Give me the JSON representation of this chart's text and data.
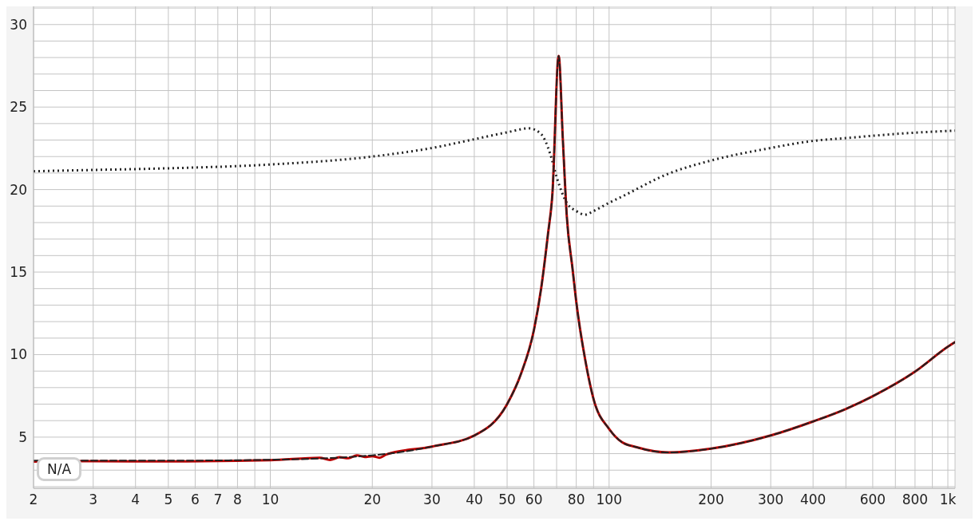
{
  "chart_data": {
    "type": "line",
    "annotations": [
      "N/A"
    ],
    "log": "x",
    "grid": true,
    "legend": false,
    "marker": "none",
    "xlim": [
      2,
      1050
    ],
    "xticks": [
      2,
      3,
      4,
      5,
      6,
      7,
      8,
      {
        "value": 9,
        "label": null
      },
      10,
      20,
      30,
      40,
      50,
      60,
      {
        "value": 70,
        "label": null
      },
      80,
      {
        "value": 90,
        "label": null
      },
      100,
      200,
      300,
      400,
      {
        "value": 500,
        "label": null
      },
      600,
      {
        "value": 700,
        "label": null
      },
      800,
      {
        "value": 900,
        "label": null
      },
      {
        "value": 1000,
        "label": "1k"
      }
    ],
    "ylim": [
      1.9,
      31.1
    ],
    "yticks": [
      {
        "value": 2,
        "label": null
      },
      {
        "value": 3,
        "label": null
      },
      {
        "value": 4,
        "label": null
      },
      5,
      {
        "value": 6,
        "label": null
      },
      {
        "value": 7,
        "label": null
      },
      {
        "value": 8,
        "label": null
      },
      {
        "value": 9,
        "label": null
      },
      10,
      {
        "value": 11,
        "label": null
      },
      {
        "value": 12,
        "label": null
      },
      {
        "value": 13,
        "label": null
      },
      {
        "value": 14,
        "label": null
      },
      15,
      {
        "value": 16,
        "label": null
      },
      {
        "value": 17,
        "label": null
      },
      {
        "value": 18,
        "label": null
      },
      {
        "value": 19,
        "label": null
      },
      20,
      {
        "value": 21,
        "label": null
      },
      {
        "value": 22,
        "label": null
      },
      {
        "value": 23,
        "label": null
      },
      {
        "value": 24,
        "label": null
      },
      25,
      {
        "value": 26,
        "label": null
      },
      {
        "value": 27,
        "label": null
      },
      {
        "value": 28,
        "label": null
      },
      {
        "value": 29,
        "label": null
      },
      30,
      {
        "value": 31,
        "label": null
      }
    ],
    "series": [
      {
        "color": "#222222",
        "line_style": "dotted",
        "x": [
          2,
          3,
          5,
          10,
          20,
          30,
          40,
          50,
          58,
          63,
          67,
          70,
          75,
          80,
          85,
          90,
          100,
          109,
          150,
          200,
          300,
          400,
          500,
          600,
          800,
          1000,
          1050
        ],
        "values": [
          21.11,
          21.19,
          21.29,
          21.52,
          22.0,
          22.52,
          23.05,
          23.47,
          23.71,
          23.36,
          22.17,
          20.76,
          19.2,
          18.7,
          18.48,
          18.7,
          19.2,
          19.57,
          20.97,
          21.76,
          22.52,
          22.95,
          23.12,
          23.26,
          23.45,
          23.55,
          23.57
        ]
      },
      {
        "color": "#bb0000",
        "line_style": "solid",
        "x": [
          2,
          3,
          5,
          10,
          14,
          15,
          16,
          17,
          18,
          19,
          20,
          21,
          22,
          30,
          40,
          50,
          55,
          60,
          63,
          66,
          68,
          71,
          73,
          75,
          78,
          80,
          85,
          90,
          100,
          109,
          120,
          150,
          200,
          300,
          400,
          500,
          600,
          800,
          1000,
          1050
        ],
        "values": [
          3.52,
          3.54,
          3.53,
          3.6,
          3.75,
          3.62,
          3.78,
          3.72,
          3.9,
          3.8,
          3.85,
          3.75,
          3.95,
          4.43,
          5.1,
          7.0,
          8.86,
          11.5,
          14.0,
          17.3,
          19.7,
          28.1,
          23.1,
          18.4,
          15.2,
          13.2,
          9.7,
          7.3,
          5.5,
          4.7,
          4.4,
          4.07,
          4.3,
          5.1,
          5.95,
          6.71,
          7.48,
          8.97,
          10.48,
          10.76
        ]
      },
      {
        "color": "#222222",
        "line_style": "dashed",
        "x": [
          2,
          5,
          10,
          20,
          30,
          40,
          50,
          55,
          60,
          63,
          66,
          68,
          71,
          73,
          75,
          78,
          80,
          85,
          90,
          100,
          109,
          120,
          150,
          200,
          300,
          400,
          500,
          600,
          800,
          1000,
          1050
        ],
        "values": [
          3.58,
          3.58,
          3.63,
          3.9,
          4.43,
          5.1,
          7.0,
          8.86,
          11.5,
          14.0,
          17.3,
          19.7,
          28.1,
          23.1,
          18.4,
          15.2,
          13.2,
          9.7,
          7.3,
          5.5,
          4.7,
          4.4,
          4.07,
          4.3,
          5.1,
          5.95,
          6.71,
          7.48,
          8.97,
          10.48,
          10.76
        ]
      }
    ]
  }
}
